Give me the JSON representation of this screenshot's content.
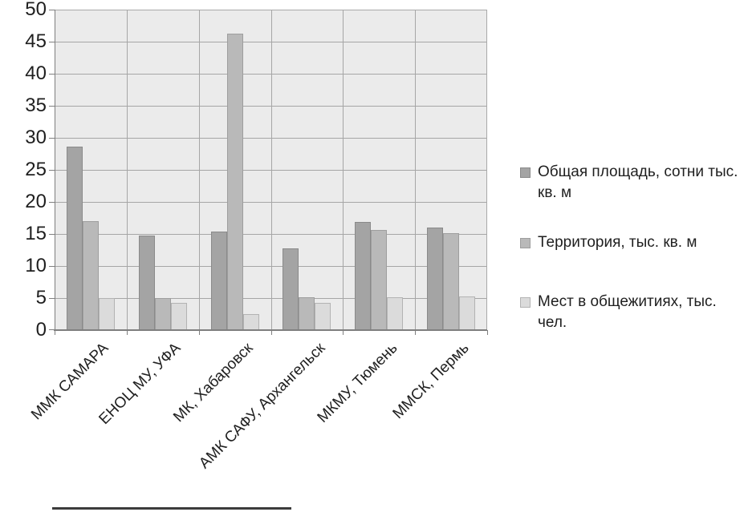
{
  "chart_data": {
    "type": "bar",
    "title": "",
    "categories": [
      "ММК САМАРА",
      "ЕНОЦ МУ, УФА",
      "МК, Хабаровск",
      "АМК САФУ, Архангельск",
      "МКМУ, Тюмень",
      "ММСК, Пермь"
    ],
    "series": [
      {
        "name": "Общая площадь, сотни тыс. кв. м",
        "values": [
          28.6,
          14.8,
          15.4,
          12.8,
          16.9,
          16.0
        ],
        "color": "#a4a4a4",
        "border_color": "#8a8a8a"
      },
      {
        "name": "Территория, тыс. кв. м",
        "values": [
          17.0,
          5.0,
          46.3,
          5.1,
          15.6,
          15.1
        ],
        "color": "#b9b9b9",
        "border_color": "#9e9e9e"
      },
      {
        "name": "Мест в общежитиях, тыс. чел.",
        "values": [
          5.0,
          4.3,
          2.5,
          4.3,
          5.1,
          5.2
        ],
        "color": "#dbdbdb",
        "border_color": "#b3b3b3"
      }
    ],
    "ylim": [
      0,
      50
    ],
    "ytick_step": 5,
    "yticks": [
      "0",
      "5",
      "10",
      "15",
      "20",
      "25",
      "30",
      "35",
      "40",
      "45",
      "50"
    ],
    "grid": true,
    "legend_position": "right",
    "plot_bg_color": "#ebebeb",
    "grid_color": "#a6a6a6",
    "axis_color": "#7f7f7f",
    "text_color": "#1f1f1f"
  }
}
